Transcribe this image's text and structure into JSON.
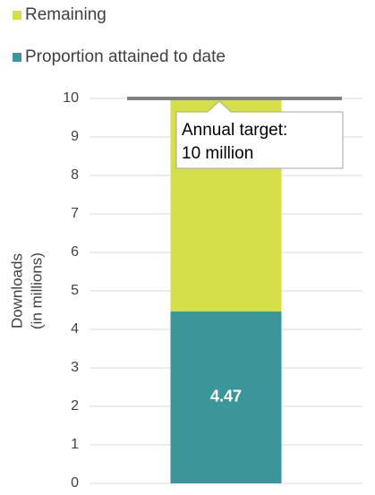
{
  "chart_data": {
    "type": "bar",
    "stacked": true,
    "categories": [
      null
    ],
    "series": [
      {
        "name": "Proportion attained to date",
        "color": "#3a9699",
        "values": [
          4.47
        ]
      },
      {
        "name": "Remaining",
        "color": "#d4df4a",
        "values": [
          5.53
        ]
      }
    ],
    "ylabel": [
      "Downloads",
      "(in millions)"
    ],
    "ylim": [
      0,
      10
    ],
    "yticks": [
      0,
      1,
      2,
      3,
      4,
      5,
      6,
      7,
      8,
      9,
      10
    ],
    "grid": true,
    "legend": "top",
    "annotation": {
      "text": [
        "Annual target:",
        "10 million"
      ],
      "value": 10,
      "color": "#808080"
    }
  }
}
